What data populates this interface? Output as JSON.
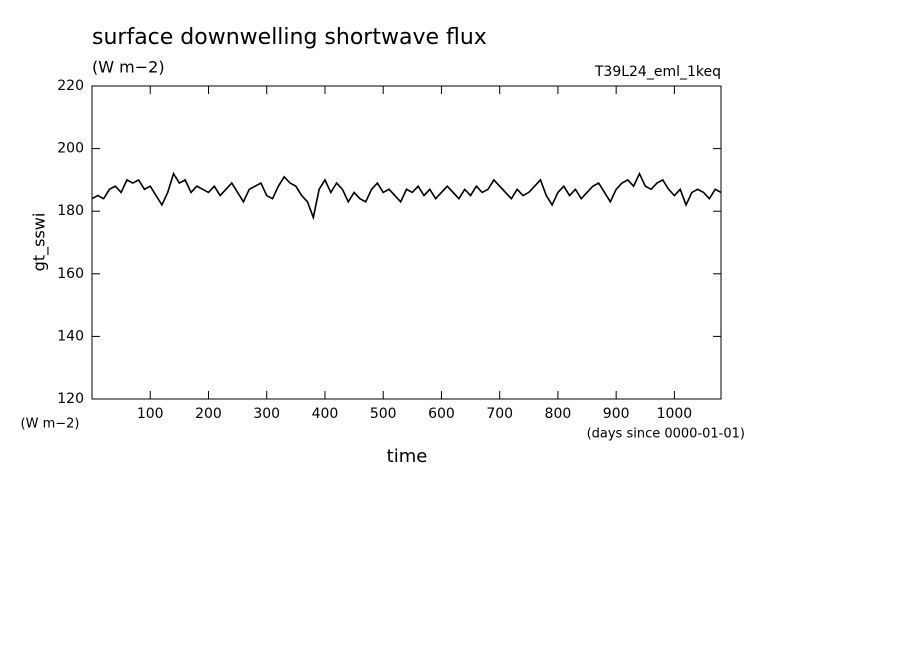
{
  "chart_data": {
    "type": "line",
    "title": "surface downwelling shortwave flux",
    "subtitle": "(W m−2)",
    "experiment": "T39L24_eml_1keq",
    "y_label": "gt_sswi",
    "y_unit": "(W m−2)",
    "x_label": "time",
    "x_unit": "(days since 0000-01-01)",
    "x": [
      0,
      10,
      20,
      30,
      40,
      50,
      60,
      70,
      80,
      90,
      100,
      110,
      120,
      130,
      140,
      150,
      160,
      170,
      180,
      190,
      200,
      210,
      220,
      230,
      240,
      250,
      260,
      270,
      280,
      290,
      300,
      310,
      320,
      330,
      340,
      350,
      360,
      370,
      380,
      390,
      400,
      410,
      420,
      430,
      440,
      450,
      460,
      470,
      480,
      490,
      500,
      510,
      520,
      530,
      540,
      550,
      560,
      570,
      580,
      590,
      600,
      610,
      620,
      630,
      640,
      650,
      660,
      670,
      680,
      690,
      700,
      710,
      720,
      730,
      740,
      750,
      760,
      770,
      780,
      790,
      800,
      810,
      820,
      830,
      840,
      850,
      860,
      870,
      880,
      890,
      900,
      910,
      920,
      930,
      940,
      950,
      960,
      970,
      980,
      990,
      1000,
      1010,
      1020,
      1030,
      1040,
      1050,
      1060,
      1070,
      1080
    ],
    "series": [
      {
        "name": "gt_sswi",
        "color": "#000000",
        "values": [
          184,
          185,
          184,
          187,
          188,
          186,
          190,
          189,
          190,
          187,
          188,
          185,
          182,
          186,
          192,
          189,
          190,
          186,
          188,
          187,
          186,
          188,
          185,
          187,
          189,
          186,
          183,
          187,
          188,
          189,
          185,
          184,
          188,
          191,
          189,
          188,
          185,
          183,
          178,
          187,
          190,
          186,
          189,
          187,
          183,
          186,
          184,
          183,
          187,
          189,
          186,
          187,
          185,
          183,
          187,
          186,
          188,
          185,
          187,
          184,
          186,
          188,
          186,
          184,
          187,
          185,
          188,
          186,
          187,
          190,
          188,
          186,
          184,
          187,
          185,
          186,
          188,
          190,
          185,
          182,
          186,
          188,
          185,
          187,
          184,
          186,
          188,
          189,
          186,
          183,
          187,
          189,
          190,
          188,
          192,
          188,
          187,
          189,
          190,
          187,
          185,
          187,
          182,
          186,
          187,
          186,
          184,
          187,
          186
        ]
      }
    ],
    "xlim": [
      0,
      1080
    ],
    "ylim": [
      120,
      220
    ],
    "xticks": [
      100,
      200,
      300,
      400,
      500,
      600,
      700,
      800,
      900,
      1000
    ],
    "yticks": [
      120,
      140,
      160,
      180,
      200,
      220
    ]
  }
}
